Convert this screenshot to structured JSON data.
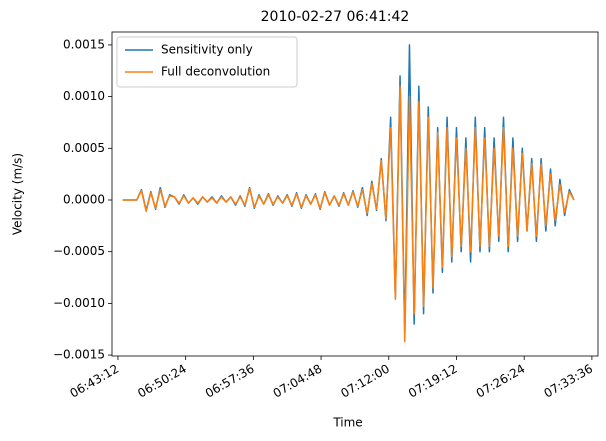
{
  "chart_data": {
    "type": "line",
    "title": "2010-02-27 06:41:42",
    "x_label": "Time",
    "y_label": "Velocity (m/s)",
    "legend": "upper left",
    "x": [
      "06:43:42",
      "06:44:12",
      "06:44:42",
      "06:45:12",
      "06:45:42",
      "06:46:12",
      "06:46:42",
      "06:47:12",
      "06:47:42",
      "06:48:12",
      "06:48:42",
      "06:49:12",
      "06:49:42",
      "06:50:12",
      "06:50:42",
      "06:51:12",
      "06:51:42",
      "06:52:12",
      "06:52:42",
      "06:53:12",
      "06:53:42",
      "06:54:12",
      "06:54:42",
      "06:55:12",
      "06:55:42",
      "06:56:12",
      "06:56:42",
      "06:57:12",
      "06:57:42",
      "06:58:12",
      "06:58:42",
      "06:59:12",
      "06:59:42",
      "07:00:12",
      "07:00:42",
      "07:01:12",
      "07:01:42",
      "07:02:12",
      "07:02:42",
      "07:03:12",
      "07:03:42",
      "07:04:12",
      "07:04:42",
      "07:05:12",
      "07:05:42",
      "07:06:12",
      "07:06:42",
      "07:07:12",
      "07:07:42",
      "07:08:12",
      "07:08:42",
      "07:09:12",
      "07:09:42",
      "07:10:12",
      "07:10:42",
      "07:11:12",
      "07:11:42",
      "07:12:12",
      "07:12:42",
      "07:13:12",
      "07:13:42",
      "07:14:12",
      "07:14:42",
      "07:15:12",
      "07:15:42",
      "07:16:12",
      "07:16:42",
      "07:17:12",
      "07:17:42",
      "07:18:12",
      "07:18:42",
      "07:19:12",
      "07:19:42",
      "07:20:12",
      "07:20:42",
      "07:21:12",
      "07:21:42",
      "07:22:12",
      "07:22:42",
      "07:23:12",
      "07:23:42",
      "07:24:12",
      "07:24:42",
      "07:25:12",
      "07:25:42",
      "07:26:12",
      "07:26:42",
      "07:27:12",
      "07:27:42",
      "07:28:12",
      "07:28:42",
      "07:29:12",
      "07:29:42",
      "07:30:12",
      "07:30:42",
      "07:31:12",
      "07:31:42"
    ],
    "series": [
      {
        "name": "Sensitivity only",
        "color": "#1f77b4",
        "values": [
          0,
          0,
          0,
          0,
          0.0001,
          -0.0001,
          8e-05,
          -9e-05,
          0.00012,
          -7e-05,
          5e-05,
          3e-05,
          -4e-05,
          5e-05,
          -3e-05,
          2e-05,
          -4e-05,
          3e-05,
          -2e-05,
          3e-05,
          -3e-05,
          4e-05,
          -2e-05,
          3e-05,
          -5e-05,
          4e-05,
          -6e-05,
          0.00012,
          -8e-05,
          5e-05,
          -4e-05,
          6e-05,
          -5e-05,
          4e-05,
          -3e-05,
          5e-05,
          -6e-05,
          7e-05,
          -8e-05,
          5e-05,
          -4e-05,
          6e-05,
          -9e-05,
          8e-05,
          -5e-05,
          4e-05,
          -6e-05,
          7e-05,
          -5e-05,
          9e-05,
          -7e-05,
          0.00012,
          -0.00015,
          0.00018,
          -0.0001,
          0.0004,
          -0.0002,
          0.0008,
          -0.00095,
          0.0012,
          -0.0013,
          0.0015,
          -0.0012,
          0.0011,
          -0.0011,
          0.0009,
          -0.0009,
          0.0007,
          -0.0007,
          0.0008,
          -0.0006,
          0.0007,
          -0.0005,
          0.0006,
          -0.0006,
          0.0008,
          -0.0005,
          0.0007,
          -0.0005,
          0.0006,
          -0.0004,
          0.0008,
          -0.0005,
          0.0006,
          -0.0004,
          0.0005,
          -0.0003,
          0.0004,
          -0.0004,
          0.0004,
          -0.0003,
          0.0003,
          -0.00025,
          0.0002,
          -0.00015,
          0.0001,
          0
        ]
      },
      {
        "name": "Full deconvolution",
        "color": "#ff7f0e",
        "values": [
          0,
          0,
          0,
          0,
          9e-05,
          -0.00011,
          7e-05,
          -8e-05,
          0.0001,
          -6e-05,
          4e-05,
          3e-05,
          -3e-05,
          4e-05,
          -3e-05,
          2e-05,
          -3e-05,
          3e-05,
          -2e-05,
          2e-05,
          -3e-05,
          3e-05,
          -2e-05,
          3e-05,
          -4e-05,
          3e-05,
          -5e-05,
          0.00011,
          -7e-05,
          4e-05,
          -4e-05,
          5e-05,
          -4e-05,
          3e-05,
          -3e-05,
          4e-05,
          -5e-05,
          6e-05,
          -7e-05,
          4e-05,
          -4e-05,
          5e-05,
          -8e-05,
          7e-05,
          -5e-05,
          4e-05,
          -5e-05,
          6e-05,
          -5e-05,
          8e-05,
          -6e-05,
          0.0001,
          -0.00013,
          0.00016,
          -9e-05,
          0.00038,
          -0.00018,
          0.0007,
          -0.00096,
          0.0011,
          -0.00137,
          0.001,
          -0.0011,
          0.00095,
          -0.00103,
          0.0008,
          -0.00085,
          0.00065,
          -0.00065,
          0.0007,
          -0.00055,
          0.0006,
          -0.00045,
          0.0005,
          -0.0005,
          0.0007,
          -0.00045,
          0.0006,
          -0.00045,
          0.0005,
          -0.00035,
          0.0007,
          -0.00045,
          0.0005,
          -0.00035,
          0.00045,
          -0.0003,
          0.00035,
          -0.00035,
          0.00035,
          -0.00025,
          0.00025,
          -0.0002,
          0.00015,
          -0.00012,
          8e-05,
          0
        ]
      }
    ],
    "xlim": [
      "06:42:34",
      "07:34:15"
    ],
    "xticks": [
      "06:43:12",
      "06:50:24",
      "06:57:36",
      "07:04:48",
      "07:12:00",
      "07:19:12",
      "07:26:24",
      "07:33:36"
    ],
    "ylim": [
      -0.001509,
      0.001625
    ],
    "yticks": [
      {
        "value": -0.0015,
        "label": "−0.0015"
      },
      {
        "value": -0.001,
        "label": "−0.0010"
      },
      {
        "value": -0.0005,
        "label": "−0.0005"
      },
      {
        "value": 0,
        "label": "0.0000"
      },
      0.0005,
      {
        "value": 0.001,
        "label": "0.0010"
      },
      0.0015
    ]
  }
}
